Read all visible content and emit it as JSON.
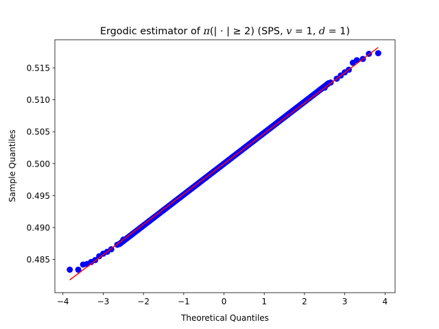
{
  "chart_data": {
    "type": "scatter",
    "title": {
      "t1": "Ergodic estimator of ",
      "t2": "π",
      "t3": "(| · | ≥ 2) (SPS, ",
      "t4": "v",
      "t5": " = 1, ",
      "t6": "d",
      "t7": " = 1)"
    },
    "xlabel": "Theoretical Quantiles",
    "ylabel": "Sample Quantiles",
    "xlim": [
      -4.2,
      4.25
    ],
    "ylim": [
      0.4798,
      0.5194
    ],
    "xticks": [
      -4,
      -3,
      -2,
      -1,
      0,
      1,
      2,
      3,
      4
    ],
    "yticks": [
      0.485,
      0.49,
      0.495,
      0.5,
      0.505,
      0.51,
      0.515
    ],
    "ytick_labels": [
      "0.485",
      "0.490",
      "0.495",
      "0.500",
      "0.505",
      "0.510",
      "0.515"
    ],
    "grid": false,
    "point_color": "#0000ff",
    "line_color": "#ff0000",
    "reference_line": {
      "x": [
        -3.83,
        3.83
      ],
      "y": [
        0.4818,
        0.5182
      ]
    },
    "series": [
      {
        "values": [
          {
            "x": -3.83,
            "y": 0.4834
          },
          {
            "x": -3.62,
            "y": 0.4834
          },
          {
            "x": -3.5,
            "y": 0.4842
          },
          {
            "x": -3.4,
            "y": 0.4843
          },
          {
            "x": -3.3,
            "y": 0.4846
          },
          {
            "x": -3.2,
            "y": 0.4849
          },
          {
            "x": -3.1,
            "y": 0.4855
          },
          {
            "x": -3.0,
            "y": 0.4859
          },
          {
            "x": -2.9,
            "y": 0.4862
          },
          {
            "x": -2.8,
            "y": 0.4866
          },
          {
            "x": -2.65,
            "y": 0.4873
          },
          {
            "x": -2.5,
            "y": 0.4881
          },
          {
            "x": 2.5,
            "y": 0.5119
          },
          {
            "x": 2.65,
            "y": 0.5127
          },
          {
            "x": 2.8,
            "y": 0.5133
          },
          {
            "x": 2.9,
            "y": 0.5138
          },
          {
            "x": 3.0,
            "y": 0.5143
          },
          {
            "x": 3.1,
            "y": 0.5147
          },
          {
            "x": 3.2,
            "y": 0.5158
          },
          {
            "x": 3.3,
            "y": 0.5162
          },
          {
            "x": 3.45,
            "y": 0.5164
          },
          {
            "x": 3.6,
            "y": 0.5172
          },
          {
            "x": 3.83,
            "y": 0.5173
          }
        ],
        "band": {
          "x": [
            -2.6,
            2.6
          ],
          "y": [
            0.4874,
            0.5126
          ]
        }
      }
    ]
  }
}
